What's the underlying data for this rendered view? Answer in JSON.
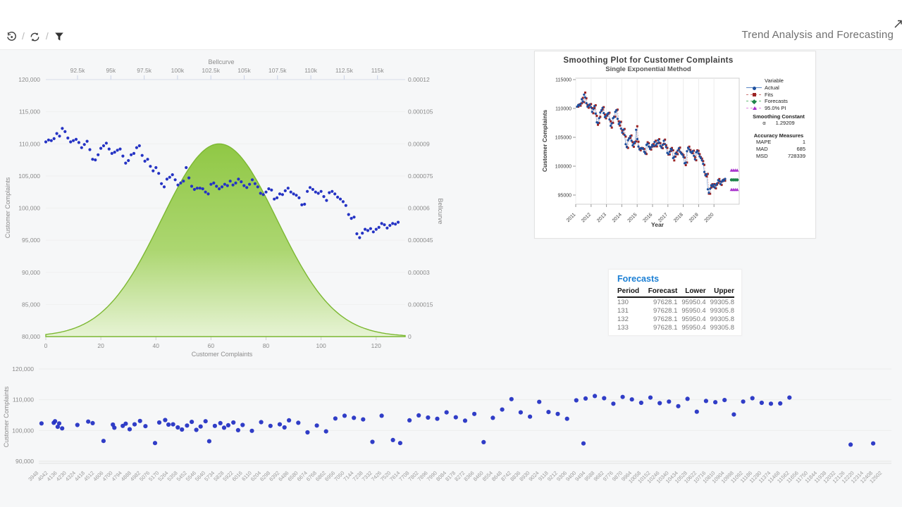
{
  "header": {
    "title": "Trend Analysis and Forecasting",
    "toolbar": {
      "separator": "/",
      "icons": [
        "history-icon",
        "refresh-icon",
        "filter-icon"
      ]
    },
    "expand_icon": "expand-icon"
  },
  "colors": {
    "dot_blue": "#2533c4",
    "bell_green_top": "#8cc63e",
    "bell_green_bottom": "#e6f3d3",
    "bell_stroke": "#7cb832",
    "accent_blue": "#1b7fd4",
    "actual_line": "#7ea3d4",
    "actual_marker": "#1d4f9e",
    "fits_line": "#d08a8a",
    "fits_marker": "#9c2424",
    "forecast_marker": "#1e8449",
    "pi_marker": "#a832cc"
  },
  "chart_data": [
    {
      "id": "complaints_bellcurve",
      "type": "scatter",
      "top_axis_title": "Bellcurve",
      "xlabel": "Customer Complaints",
      "ylabel_left": "Customer Complaints",
      "ylabel_right": "Bellcurve",
      "xlim": [
        0,
        128
      ],
      "ylim_left": [
        80000,
        120000
      ],
      "ylim_right": [
        0,
        0.00012
      ],
      "x_ticks_bottom": [
        0,
        20,
        40,
        60,
        80,
        100,
        120
      ],
      "x_ticks_top": [
        "92.5k",
        "95k",
        "97.5k",
        "100k",
        "102.5k",
        "105k",
        "107.5k",
        "110k",
        "112.5k",
        "115k"
      ],
      "y_ticks_left": [
        "120,000",
        "115,000",
        "110,000",
        "105,000",
        "100,000",
        "95,000",
        "90,000",
        "85,000",
        "80,000"
      ],
      "y_ticks_right": [
        "0.00012",
        "0.000105",
        "0.00009",
        "0.000075",
        "0.00006",
        "0.000045",
        "0.00003",
        "0.000015",
        "0"
      ],
      "bellcurve": {
        "peak_density": 9e-05,
        "center_x": 63,
        "sigma_x": 21
      },
      "series_values": [
        110300,
        110600,
        110500,
        110800,
        111600,
        111200,
        112400,
        111900,
        110900,
        110300,
        110500,
        110700,
        110200,
        109400,
        109900,
        110400,
        109100,
        107600,
        107500,
        108300,
        109300,
        109700,
        110100,
        109200,
        108500,
        108700,
        109000,
        109200,
        108100,
        107000,
        107400,
        108300,
        108500,
        109400,
        109700,
        108200,
        107300,
        107600,
        106500,
        105800,
        106300,
        105400,
        103800,
        103300,
        104500,
        104800,
        105200,
        104400,
        103600,
        103900,
        104200,
        106300,
        104700,
        103400,
        102900,
        103100,
        103100,
        103000,
        102500,
        102200,
        103700,
        103900,
        103400,
        103000,
        103300,
        103700,
        103500,
        104200,
        103600,
        103900,
        104500,
        104100,
        103500,
        103200,
        103700,
        104400,
        103800,
        103300,
        102300,
        102100,
        102500,
        103000,
        102800,
        101400,
        101600,
        102200,
        102100,
        102700,
        103100,
        102500,
        102200,
        102000,
        101600,
        100500,
        100600,
        102600,
        103200,
        102900,
        102500,
        102300,
        102600,
        101800,
        101200,
        102400,
        102600,
        102200,
        101700,
        101400,
        101000,
        100400,
        99000,
        98400,
        98600,
        96000,
        95400,
        96100,
        96700,
        96500,
        96800,
        96300,
        96700,
        97000,
        97600,
        97400,
        96900,
        97300,
        97600,
        97500,
        97800
      ]
    },
    {
      "id": "smoothing_plot",
      "type": "line",
      "title": "Smoothing Plot for Customer Complaints",
      "subtitle": "Single Exponential Method",
      "xlabel": "Year",
      "ylabel": "Customer Complaints",
      "x_ticks": [
        2011,
        2012,
        2013,
        2014,
        2015,
        2016,
        2017,
        2018,
        2019,
        2020
      ],
      "y_ticks": [
        115000,
        110000,
        105000,
        100000,
        95000
      ],
      "legend_title": "Variable",
      "legend": [
        {
          "label": "Actual",
          "marker": "circle",
          "color": "#1d4f9e",
          "line": "#5b87c5",
          "dash": false
        },
        {
          "label": "Fits",
          "marker": "square",
          "color": "#9c2424",
          "line": "#cc7777",
          "dash": true
        },
        {
          "label": "Forecasts",
          "marker": "diamond",
          "color": "#1e8449",
          "line": "#66bb77",
          "dash": true
        },
        {
          "label": "95.0% PI",
          "marker": "triangle",
          "color": "#a832cc",
          "line": "#dd88dd",
          "dash": true
        }
      ],
      "smoothing_constant_label": "Smoothing Constant",
      "alpha_label": "α",
      "alpha_value": "1.29209",
      "accuracy_label": "Accuracy Measures",
      "accuracy": [
        {
          "label": "MAPE",
          "value": "1"
        },
        {
          "label": "MAD",
          "value": "685"
        },
        {
          "label": "MSD",
          "value": "728339"
        }
      ],
      "actual_values_ref": "complaints_bellcurve",
      "forecast_value": 97628.1,
      "pi_lower": 95950.4,
      "pi_upper": 99305.8,
      "forecast_count": 4
    },
    {
      "id": "bottom_scatter",
      "type": "scatter",
      "ylabel": "Customer Complaints",
      "ylim": [
        90000,
        120000
      ],
      "y_ticks": [
        "120,000",
        "110,000",
        "100,000",
        "90,000"
      ],
      "x_ticks": [
        3948,
        4042,
        4136,
        4230,
        4324,
        4418,
        4512,
        4606,
        4700,
        4794,
        4888,
        4982,
        5076,
        5170,
        5264,
        5358,
        5452,
        5546,
        5640,
        5734,
        5828,
        5922,
        6016,
        6110,
        6204,
        6298,
        6392,
        6486,
        6580,
        6674,
        6768,
        6862,
        6956,
        7050,
        7144,
        7238,
        7332,
        7426,
        7520,
        7614,
        7708,
        7802,
        7896,
        7990,
        8084,
        8178,
        8272,
        8366,
        8460,
        8554,
        8648,
        8742,
        8836,
        8930,
        9024,
        9118,
        9212,
        9306,
        9400,
        9494,
        9588,
        9682,
        9776,
        9870,
        9964,
        10058,
        10152,
        10246,
        10340,
        10434,
        10528,
        10622,
        10716,
        10810,
        10904,
        10998,
        11092,
        11186,
        11280,
        11374,
        11468,
        11562,
        11656,
        11750,
        11844,
        11938,
        12032,
        12126,
        12220,
        12314,
        12408,
        12502
      ],
      "points": [
        [
          3976,
          102300
        ],
        [
          4100,
          102500
        ],
        [
          4113,
          103000
        ],
        [
          4140,
          101200
        ],
        [
          4155,
          102300
        ],
        [
          4185,
          100700
        ],
        [
          4340,
          101800
        ],
        [
          4450,
          102900
        ],
        [
          4495,
          102400
        ],
        [
          4605,
          96600
        ],
        [
          4700,
          101900
        ],
        [
          4715,
          100900
        ],
        [
          4800,
          101500
        ],
        [
          4830,
          102200
        ],
        [
          4870,
          100400
        ],
        [
          4920,
          102000
        ],
        [
          4975,
          103100
        ],
        [
          5030,
          101400
        ],
        [
          5127,
          95900
        ],
        [
          5170,
          102600
        ],
        [
          5230,
          103400
        ],
        [
          5264,
          101900
        ],
        [
          5310,
          102000
        ],
        [
          5358,
          101000
        ],
        [
          5400,
          100300
        ],
        [
          5452,
          101600
        ],
        [
          5500,
          102800
        ],
        [
          5546,
          100200
        ],
        [
          5590,
          101300
        ],
        [
          5640,
          103000
        ],
        [
          5677,
          96500
        ],
        [
          5734,
          101500
        ],
        [
          5790,
          102400
        ],
        [
          5828,
          100900
        ],
        [
          5870,
          101700
        ],
        [
          5922,
          102600
        ],
        [
          5970,
          100100
        ],
        [
          6016,
          101800
        ],
        [
          6110,
          99900
        ],
        [
          6204,
          102700
        ],
        [
          6298,
          101500
        ],
        [
          6392,
          102000
        ],
        [
          6440,
          101000
        ],
        [
          6486,
          103300
        ],
        [
          6580,
          102500
        ],
        [
          6674,
          99400
        ],
        [
          6768,
          101600
        ],
        [
          6862,
          99700
        ],
        [
          6956,
          103900
        ],
        [
          7050,
          104800
        ],
        [
          7144,
          104100
        ],
        [
          7238,
          103600
        ],
        [
          7332,
          96300
        ],
        [
          7426,
          104800
        ],
        [
          7540,
          96900
        ],
        [
          7614,
          95900
        ],
        [
          7708,
          103300
        ],
        [
          7802,
          104900
        ],
        [
          7896,
          104200
        ],
        [
          7990,
          103800
        ],
        [
          8084,
          105900
        ],
        [
          8178,
          104300
        ],
        [
          8272,
          103200
        ],
        [
          8366,
          105400
        ],
        [
          8460,
          96200
        ],
        [
          8554,
          104100
        ],
        [
          8648,
          106800
        ],
        [
          8742,
          110200
        ],
        [
          8836,
          105900
        ],
        [
          8930,
          104500
        ],
        [
          9024,
          109300
        ],
        [
          9118,
          106000
        ],
        [
          9212,
          105400
        ],
        [
          9306,
          103800
        ],
        [
          9400,
          109800
        ],
        [
          9473,
          95800
        ],
        [
          9494,
          110400
        ],
        [
          9588,
          111200
        ],
        [
          9682,
          110500
        ],
        [
          9776,
          108700
        ],
        [
          9870,
          110900
        ],
        [
          9964,
          110100
        ],
        [
          10058,
          109000
        ],
        [
          10152,
          110700
        ],
        [
          10246,
          108900
        ],
        [
          10340,
          109400
        ],
        [
          10434,
          107900
        ],
        [
          10528,
          110300
        ],
        [
          10622,
          106100
        ],
        [
          10716,
          109600
        ],
        [
          10810,
          109200
        ],
        [
          10904,
          109900
        ],
        [
          10998,
          105200
        ],
        [
          11092,
          109400
        ],
        [
          11186,
          110500
        ],
        [
          11280,
          109000
        ],
        [
          11374,
          108700
        ],
        [
          11468,
          108800
        ],
        [
          11562,
          110700
        ],
        [
          12182,
          95400
        ],
        [
          12411,
          95800
        ]
      ]
    },
    {
      "id": "forecast_table",
      "type": "table",
      "title": "Forecasts",
      "columns": [
        "Period",
        "Forecast",
        "Lower",
        "Upper"
      ],
      "rows": [
        [
          "130",
          "97628.1",
          "95950.4",
          "99305.8"
        ],
        [
          "131",
          "97628.1",
          "95950.4",
          "99305.8"
        ],
        [
          "132",
          "97628.1",
          "95950.4",
          "99305.8"
        ],
        [
          "133",
          "97628.1",
          "95950.4",
          "99305.8"
        ]
      ]
    }
  ]
}
